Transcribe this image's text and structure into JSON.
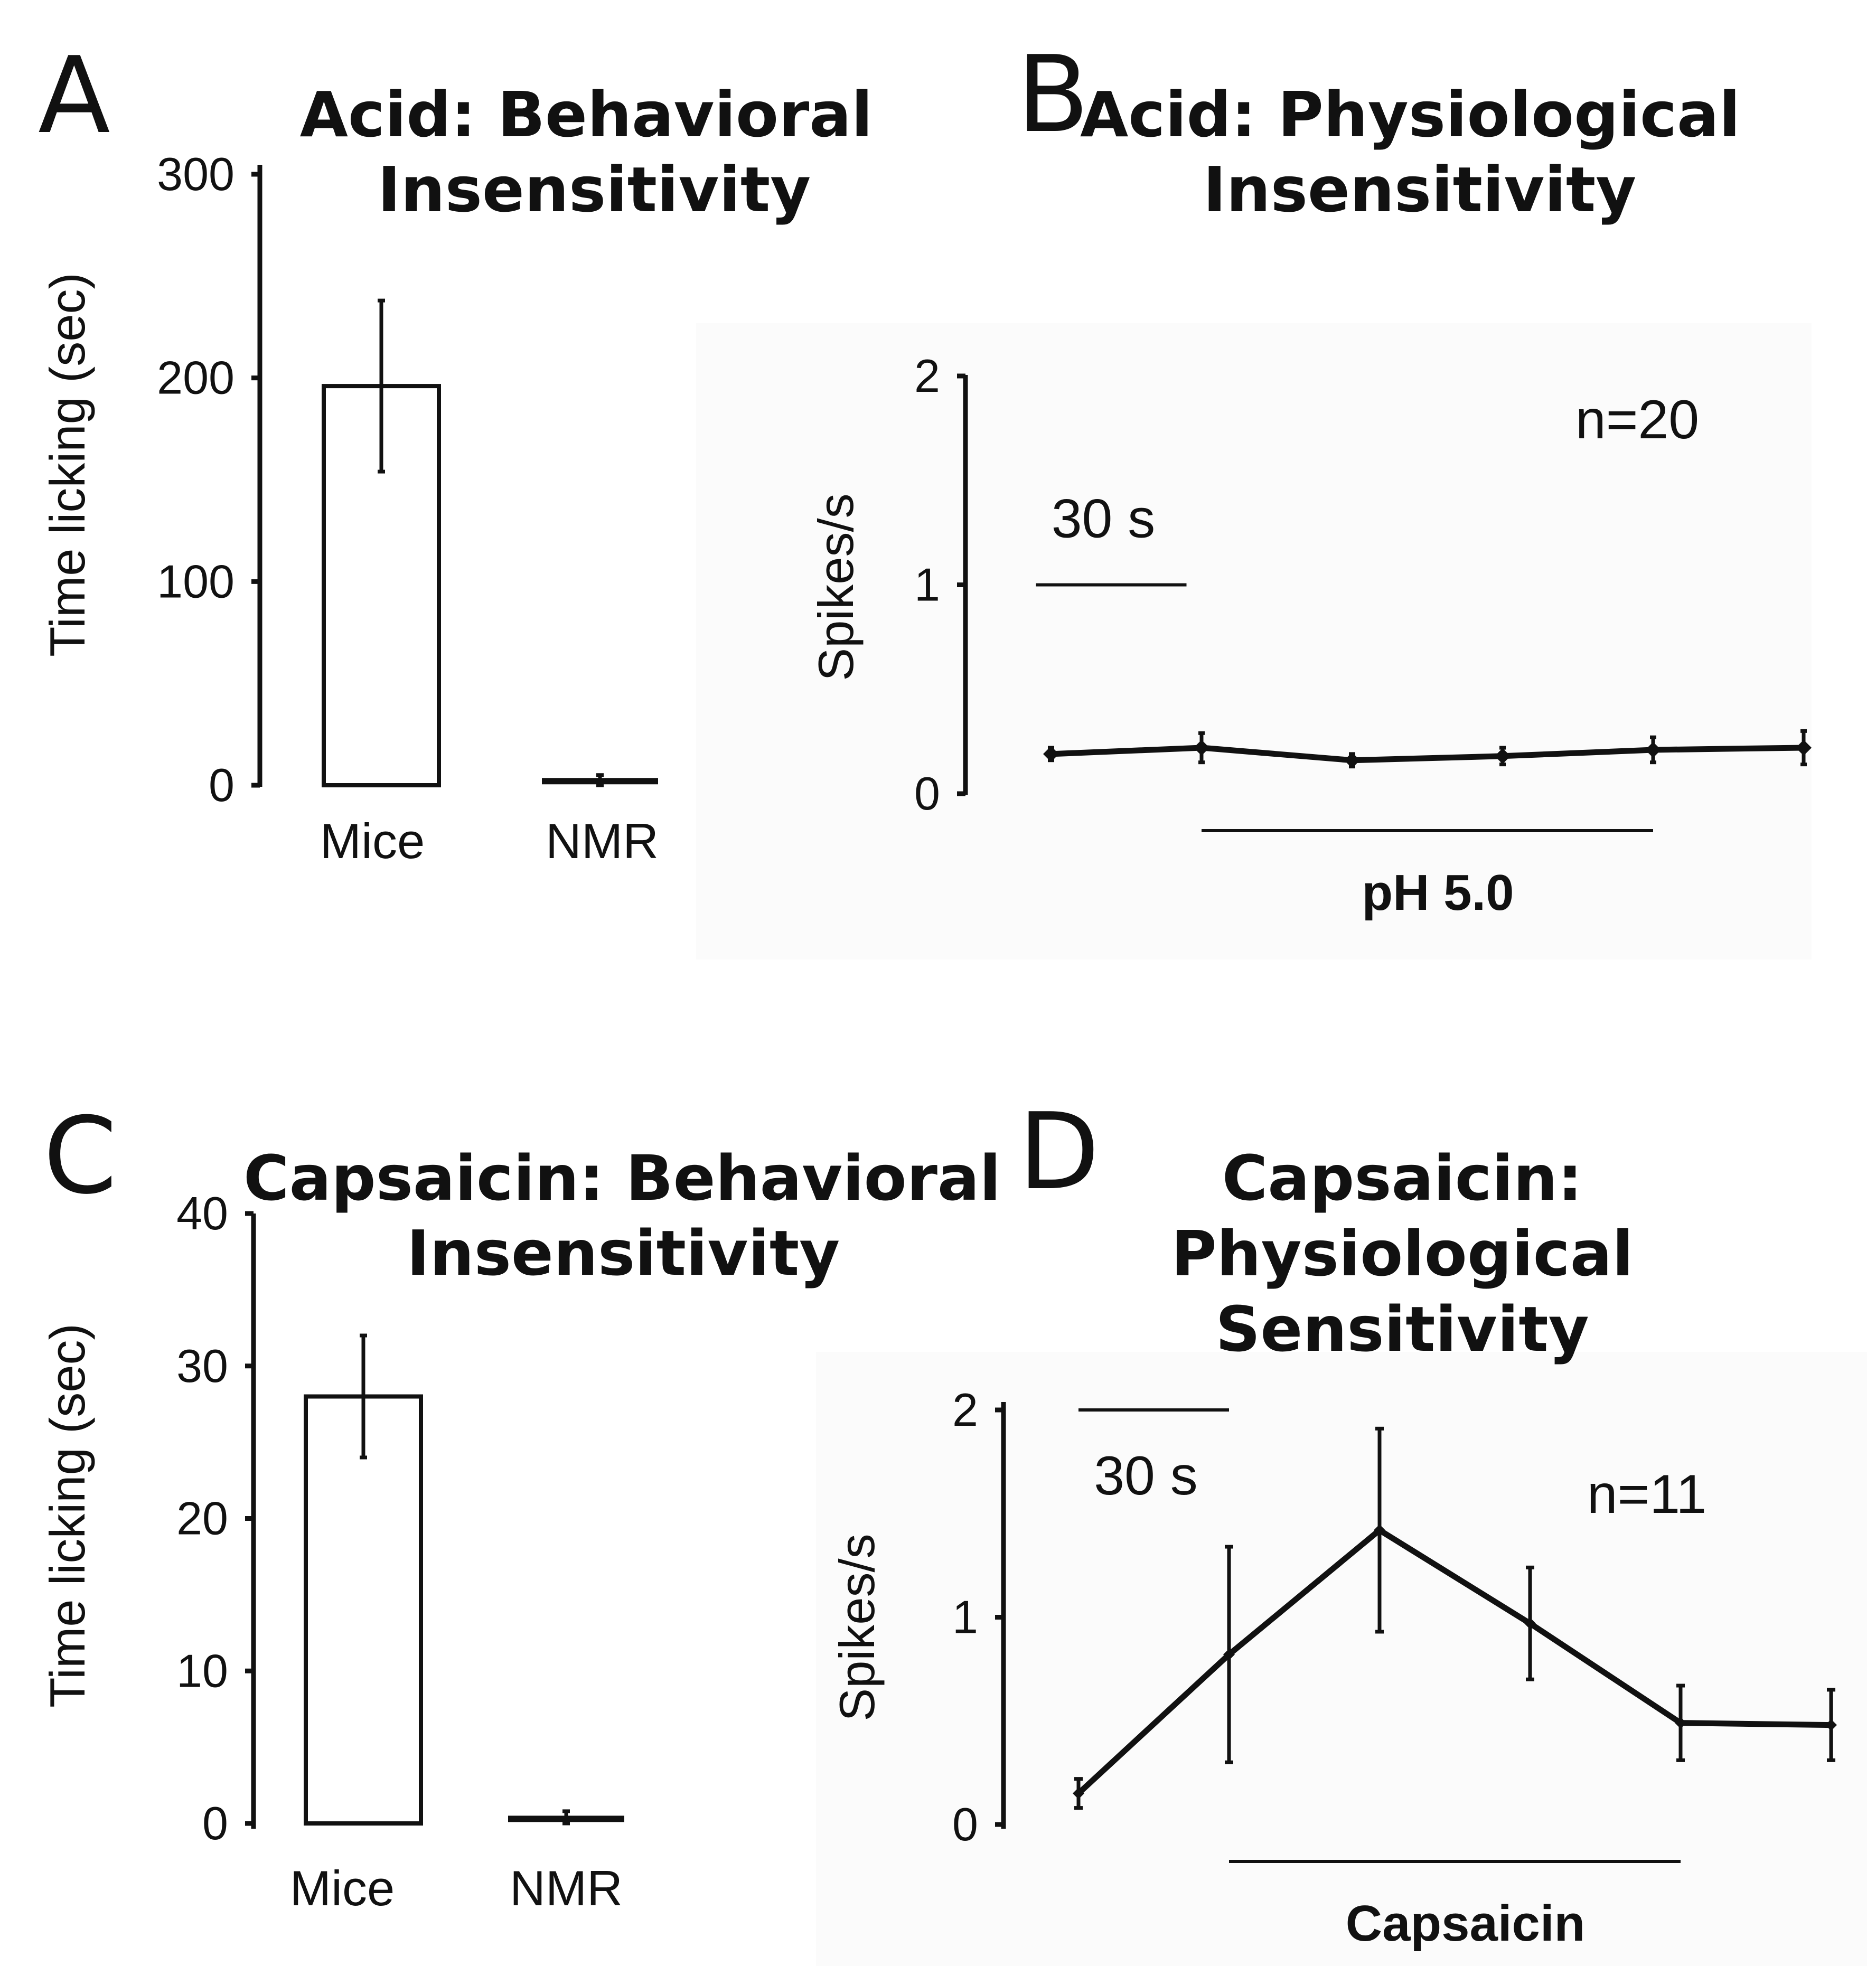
{
  "figure": {
    "panel_labels": [
      "A",
      "B",
      "C",
      "D"
    ],
    "colors": {
      "ink": "#111111",
      "bar_fill": "#ffffff",
      "panel_background": "#fbfbfb"
    }
  },
  "chart_data": [
    {
      "panel": "A",
      "type": "bar",
      "title_lines": [
        "Acid: Behavioral",
        "Insensitivity"
      ],
      "ylabel": "Time licking (sec)",
      "xlabel": "",
      "ylim": [
        0,
        300
      ],
      "yticks": [
        0,
        100,
        200,
        300
      ],
      "categories": [
        "Mice",
        "NMR"
      ],
      "values": [
        196,
        2
      ],
      "errors": [
        42,
        3
      ]
    },
    {
      "panel": "B",
      "type": "line",
      "title_lines": [
        "Acid: Physiological",
        "Insensitivity"
      ],
      "ylabel": "Spikes/s",
      "ylim": [
        0,
        2
      ],
      "yticks": [
        0,
        1,
        2
      ],
      "x": [
        1,
        2,
        3,
        4,
        5,
        6
      ],
      "values": [
        0.19,
        0.22,
        0.16,
        0.18,
        0.21,
        0.22
      ],
      "errors": [
        0.03,
        0.07,
        0.03,
        0.04,
        0.06,
        0.08
      ],
      "scale_bar": {
        "label": "30 s",
        "x_span": [
          0.9,
          1.9
        ],
        "y": 1.0
      },
      "n_label": "n=20",
      "stimulus": {
        "label": "pH 5.0",
        "x_span": [
          2,
          5
        ]
      }
    },
    {
      "panel": "C",
      "type": "bar",
      "title_lines": [
        "Capsaicin: Behavioral",
        "Insensitivity"
      ],
      "ylabel": "Time licking (sec)",
      "xlabel": "",
      "ylim": [
        0,
        40
      ],
      "yticks": [
        0,
        10,
        20,
        30,
        40
      ],
      "categories": [
        "Mice",
        "NMR"
      ],
      "values": [
        28,
        0.3
      ],
      "errors": [
        4,
        0.5
      ]
    },
    {
      "panel": "D",
      "type": "line",
      "title_lines": [
        "Capsaicin:",
        "Physiological",
        "Sensitivity"
      ],
      "ylabel": "Spikes/s",
      "ylim": [
        0,
        2
      ],
      "yticks": [
        0,
        1,
        2
      ],
      "x": [
        1,
        2,
        3,
        4,
        5,
        6
      ],
      "values": [
        0.15,
        0.82,
        1.42,
        0.97,
        0.49,
        0.48
      ],
      "errors": [
        0.07,
        0.52,
        0.49,
        0.27,
        0.18,
        0.17
      ],
      "scale_bar": {
        "label": "30 s",
        "x_span": [
          1,
          2
        ],
        "y": 2.0
      },
      "n_label": "n=11",
      "stimulus": {
        "label": "Capsaicin",
        "x_span": [
          2,
          5
        ]
      }
    }
  ]
}
